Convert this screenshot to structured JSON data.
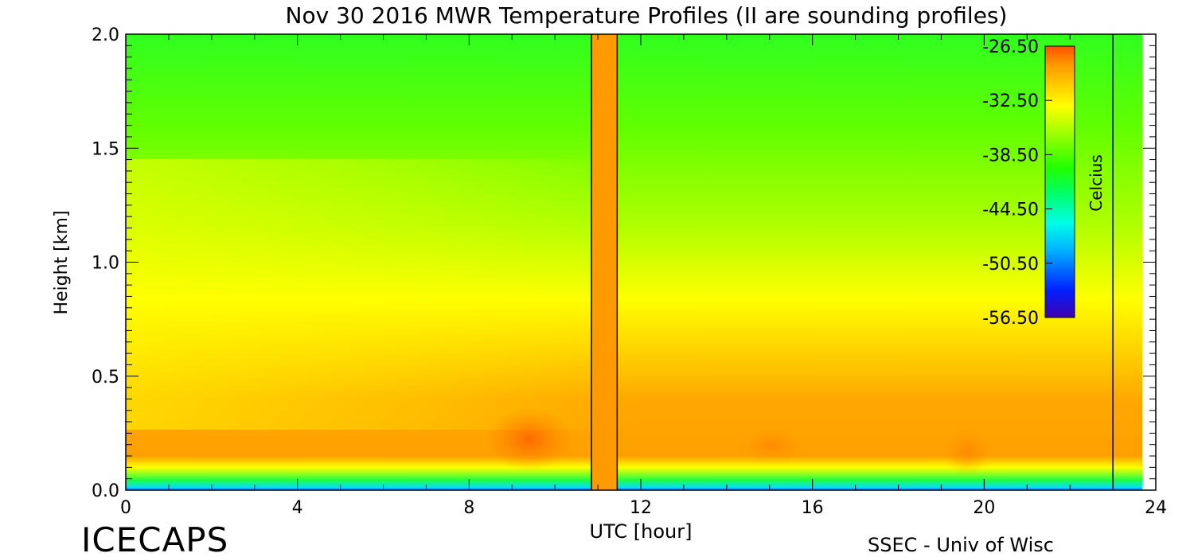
{
  "chart_data": {
    "type": "heatmap",
    "title": "Nov 30 2016 MWR Temperature Profiles (II are sounding profiles)",
    "xlabel": "UTC [hour]",
    "ylabel": "Height [km]",
    "xlim": [
      0,
      24
    ],
    "ylim": [
      0,
      2.0
    ],
    "x_ticks": [
      "0",
      "4",
      "8",
      "12",
      "16",
      "20",
      "24"
    ],
    "y_ticks": [
      "0.0",
      "0.5",
      "1.0",
      "1.5",
      "2.0"
    ],
    "sounding_times": [
      10.85,
      11.45,
      23.0
    ],
    "data_gaps": [
      [
        10.85,
        11.45
      ]
    ],
    "colorbar": {
      "label": "Celcius",
      "range": [
        -56.5,
        -26.5
      ],
      "tick_labels": [
        "-26.50",
        "-32.50",
        "-38.50",
        "-44.50",
        "-50.50",
        "-56.50"
      ],
      "colors": [
        "#4000b0",
        "#0020ff",
        "#00b4ff",
        "#00ffe6",
        "#00ff70",
        "#20ff00",
        "#a0ff00",
        "#ffff00",
        "#ffc800",
        "#ff9a00",
        "#ff5000"
      ]
    },
    "grid": false,
    "legend": "colorbar top-right inside plot"
  },
  "footer": {
    "left": "ICECAPS",
    "right": "SSEC - Univ of Wisc"
  }
}
